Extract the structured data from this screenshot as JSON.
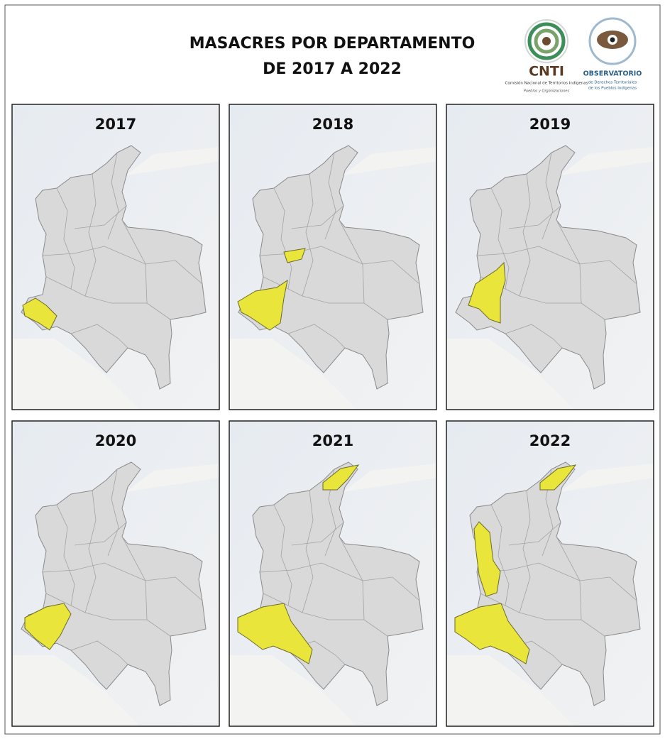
{
  "header": {
    "title_line1": "MASACRES POR DEPARTAMENTO",
    "title_line2": "DE 2017 A 2022"
  },
  "logos": [
    {
      "name": "CNTI",
      "subtitle": "Comisión Nacional de Territorios Indígenas",
      "tagline": "Pueblos y Organizaciones"
    },
    {
      "name": "OBSERVATORIO",
      "subtitle": "de Derechos Territoriales",
      "tagline": "de los Pueblos Indígenas"
    }
  ],
  "panels": [
    {
      "year": "2017"
    },
    {
      "year": "2018"
    },
    {
      "year": "2019"
    },
    {
      "year": "2020"
    },
    {
      "year": "2021"
    },
    {
      "year": "2022"
    }
  ]
}
